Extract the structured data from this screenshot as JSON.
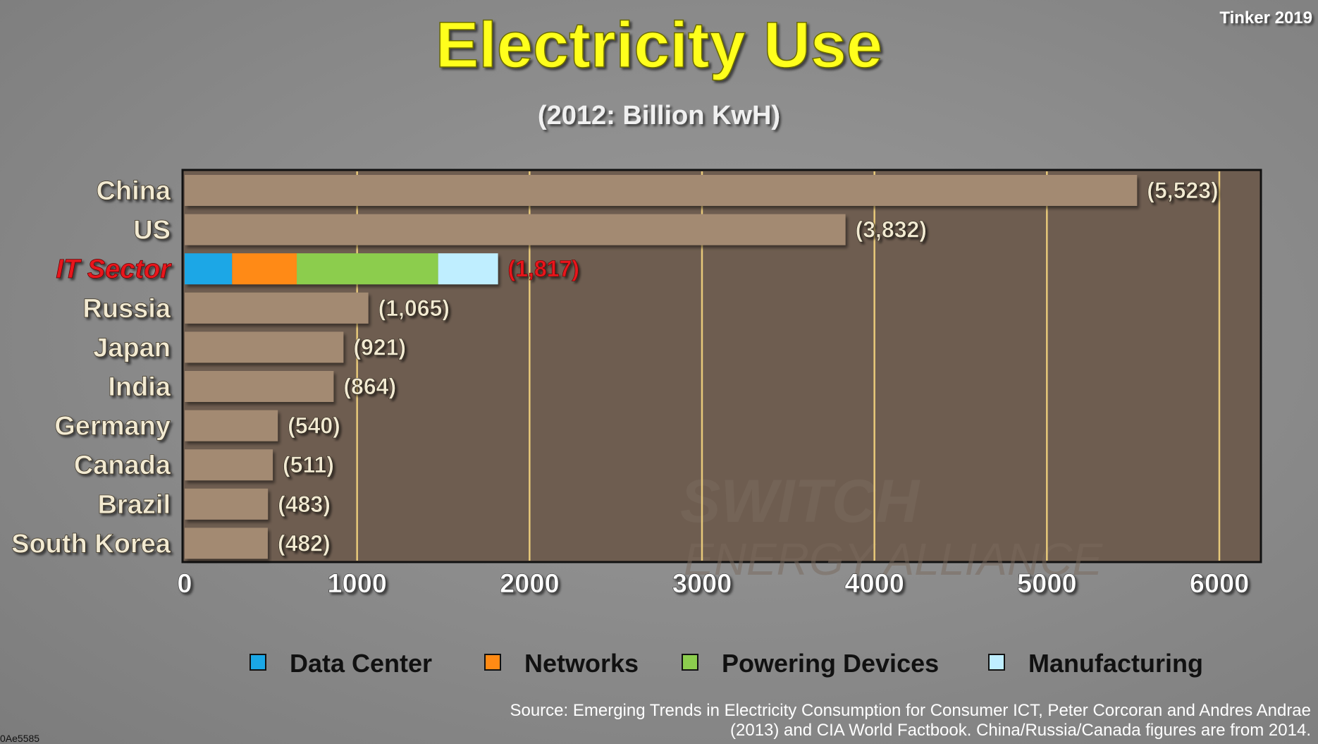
{
  "header": {
    "title": "Electricity Use",
    "subtitle": "(2012: Billion KwH)",
    "credit": "Tinker 2019"
  },
  "footer": {
    "source_line1": "Source: Emerging Trends in Electricity Consumption for Consumer ICT, Peter Corcoran and Andres Andrae",
    "source_line2": "(2013) and CIA World Factbook. China/Russia/Canada figures are from 2014.",
    "corner_id": "0Ae5585"
  },
  "watermark": {
    "line1": "SWITCH",
    "line2": "ENERGY ALLIANCE"
  },
  "colors": {
    "bar": "#a38a72",
    "plot_bg": "#6e5d50",
    "grid": "#e8c97a",
    "title": "#ffff1a",
    "label": "#f2ead2",
    "highlight": "#e8121b"
  },
  "chart_data": {
    "type": "bar",
    "orientation": "horizontal",
    "title": "Electricity Use",
    "subtitle": "(2012: Billion KwH)",
    "xlim": [
      0,
      6000
    ],
    "xticks": [
      "0",
      "1000",
      "2000",
      "3000",
      "4000",
      "5000",
      "6000"
    ],
    "grid": true,
    "categories": [
      "China",
      "US",
      "IT Sector",
      "Russia",
      "Japan",
      "India",
      "Germany",
      "Canada",
      "Brazil",
      "South Korea"
    ],
    "values": [
      5523,
      3832,
      1817,
      1065,
      921,
      864,
      540,
      511,
      483,
      482
    ],
    "value_labels": [
      "(5,523)",
      "(3,832)",
      "(1,817)",
      "(1,065)",
      "(921)",
      "(864)",
      "(540)",
      "(511)",
      "(483)",
      "(482)"
    ],
    "highlight_category": "IT Sector",
    "stacked_it_sector": [
      {
        "name": "Data Center",
        "value": 275,
        "color": "#1aa7e6"
      },
      {
        "name": "Networks",
        "value": 375,
        "color": "#ff8a14"
      },
      {
        "name": "Powering Devices",
        "value": 820,
        "color": "#8ccd4e"
      },
      {
        "name": "Manufacturing",
        "value": 347,
        "color": "#bfeeff"
      }
    ],
    "legend": {
      "placement": "bottom",
      "items": [
        {
          "label": "Data Center",
          "color": "#1aa7e6"
        },
        {
          "label": "Networks",
          "color": "#ff8a14"
        },
        {
          "label": "Powering Devices",
          "color": "#8ccd4e"
        },
        {
          "label": "Manufacturing",
          "color": "#bfeeff"
        }
      ]
    }
  }
}
